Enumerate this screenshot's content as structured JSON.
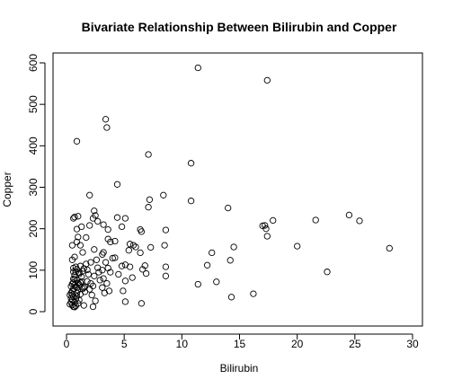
{
  "chart_data": {
    "type": "scatter",
    "title": "Bivariate Relationship Between Bilirubin and Copper",
    "xlabel": "Bilirubin",
    "ylabel": "Copper",
    "xlim": [
      0,
      30
    ],
    "ylim": [
      0,
      600
    ],
    "xticks": [
      "0",
      "5",
      "10",
      "15",
      "20",
      "25",
      "30"
    ],
    "yticks": [
      "0",
      "100",
      "200",
      "300",
      "400",
      "500",
      "600"
    ],
    "marker": "open-circle",
    "point_color": "#000000",
    "grid": false,
    "points": [
      [
        11.4,
        588
      ],
      [
        17.4,
        558
      ],
      [
        3.4,
        464
      ],
      [
        3.5,
        444
      ],
      [
        0.9,
        411
      ],
      [
        7.1,
        379
      ],
      [
        10.8,
        358
      ],
      [
        4.4,
        307
      ],
      [
        8.4,
        281
      ],
      [
        2.0,
        281
      ],
      [
        7.2,
        270
      ],
      [
        10.8,
        267
      ],
      [
        7.1,
        252
      ],
      [
        14.0,
        250
      ],
      [
        0.7,
        228
      ],
      [
        2.4,
        243
      ],
      [
        4.4,
        227
      ],
      [
        2.5,
        232
      ],
      [
        2.3,
        225
      ],
      [
        2.7,
        218
      ],
      [
        1.0,
        230
      ],
      [
        0.6,
        225
      ],
      [
        2.0,
        208
      ],
      [
        1.3,
        205
      ],
      [
        0.9,
        199
      ],
      [
        1.2,
        160
      ],
      [
        3.2,
        210
      ],
      [
        5.1,
        225
      ],
      [
        4.8,
        205
      ],
      [
        6.4,
        198
      ],
      [
        6.5,
        193
      ],
      [
        8.6,
        197
      ],
      [
        17.9,
        220
      ],
      [
        17.2,
        208
      ],
      [
        17.0,
        207
      ],
      [
        17.3,
        200
      ],
      [
        17.4,
        182
      ],
      [
        21.6,
        221
      ],
      [
        24.5,
        233
      ],
      [
        25.4,
        219
      ],
      [
        20.0,
        158
      ],
      [
        28.0,
        153
      ],
      [
        22.6,
        96
      ],
      [
        14.5,
        156
      ],
      [
        12.6,
        142
      ],
      [
        14.2,
        124
      ],
      [
        13.0,
        72
      ],
      [
        11.4,
        66
      ],
      [
        12.2,
        112
      ],
      [
        14.3,
        35
      ],
      [
        16.2,
        43
      ],
      [
        8.5,
        160
      ],
      [
        8.6,
        108
      ],
      [
        8.6,
        86
      ],
      [
        7.3,
        155
      ],
      [
        6.4,
        142
      ],
      [
        6.8,
        111
      ],
      [
        6.6,
        102
      ],
      [
        6.9,
        92
      ],
      [
        5.8,
        160
      ],
      [
        5.5,
        163
      ],
      [
        6.0,
        156
      ],
      [
        5.4,
        148
      ],
      [
        5.1,
        113
      ],
      [
        4.8,
        110
      ],
      [
        4.5,
        90
      ],
      [
        4.9,
        50
      ],
      [
        5.7,
        82
      ],
      [
        5.1,
        74
      ],
      [
        6.5,
        20
      ],
      [
        5.1,
        24
      ],
      [
        3.6,
        198
      ],
      [
        3.6,
        175
      ],
      [
        3.8,
        168
      ],
      [
        4.2,
        170
      ],
      [
        4.0,
        129
      ],
      [
        3.2,
        143
      ],
      [
        3.1,
        138
      ],
      [
        3.4,
        119
      ],
      [
        3.6,
        105
      ],
      [
        3.1,
        100
      ],
      [
        3.8,
        95
      ],
      [
        3.2,
        80
      ],
      [
        3.5,
        68
      ],
      [
        3.3,
        45
      ],
      [
        3.1,
        58
      ],
      [
        2.6,
        125
      ],
      [
        2.7,
        106
      ],
      [
        2.4,
        86
      ],
      [
        2.3,
        62
      ],
      [
        2.0,
        54
      ],
      [
        2.2,
        40
      ],
      [
        2.5,
        26
      ],
      [
        2.3,
        12
      ],
      [
        1.9,
        90
      ],
      [
        1.7,
        115
      ],
      [
        1.8,
        73
      ],
      [
        1.6,
        60
      ],
      [
        1.4,
        98
      ],
      [
        1.2,
        110
      ],
      [
        1.3,
        84
      ],
      [
        1.1,
        65
      ],
      [
        1.5,
        15
      ],
      [
        0.5,
        160
      ],
      [
        0.5,
        125
      ],
      [
        0.6,
        105
      ],
      [
        0.7,
        78
      ],
      [
        0.8,
        96
      ],
      [
        1.0,
        52
      ],
      [
        0.9,
        76
      ],
      [
        0.7,
        88
      ],
      [
        0.6,
        70
      ],
      [
        0.8,
        60
      ],
      [
        0.9,
        37
      ],
      [
        1.1,
        28
      ],
      [
        1.0,
        20
      ],
      [
        0.4,
        32
      ],
      [
        0.5,
        50
      ],
      [
        0.6,
        55
      ],
      [
        0.7,
        64
      ],
      [
        0.4,
        23
      ],
      [
        0.5,
        16
      ],
      [
        0.6,
        12
      ],
      [
        0.7,
        11
      ],
      [
        0.8,
        14
      ],
      [
        0.3,
        18
      ],
      [
        0.4,
        45
      ],
      [
        0.3,
        40
      ],
      [
        0.5,
        28
      ],
      [
        1.2,
        42
      ],
      [
        1.3,
        73
      ],
      [
        1.4,
        55
      ],
      [
        1.6,
        48
      ],
      [
        0.8,
        108
      ],
      [
        0.9,
        102
      ],
      [
        0.6,
        96
      ],
      [
        1.5,
        104
      ],
      [
        1.8,
        101
      ],
      [
        1.1,
        91
      ],
      [
        0.7,
        22
      ],
      [
        0.8,
        30
      ],
      [
        0.6,
        37
      ],
      [
        0.5,
        41
      ],
      [
        0.9,
        45
      ],
      [
        1.0,
        69
      ],
      [
        1.2,
        70
      ],
      [
        0.6,
        79
      ],
      [
        0.5,
        67
      ],
      [
        0.4,
        61
      ],
      [
        0.9,
        58
      ],
      [
        1.1,
        94
      ],
      [
        2.1,
        119
      ],
      [
        2.4,
        150
      ],
      [
        1.4,
        143
      ],
      [
        1.7,
        179
      ],
      [
        1.0,
        180
      ],
      [
        1.5,
        58
      ],
      [
        2.1,
        68
      ],
      [
        2.8,
        95
      ],
      [
        2.9,
        76
      ],
      [
        3.7,
        50
      ],
      [
        4.2,
        130
      ],
      [
        5.5,
        108
      ],
      [
        0.9,
        168
      ],
      [
        0.7,
        132
      ]
    ]
  }
}
